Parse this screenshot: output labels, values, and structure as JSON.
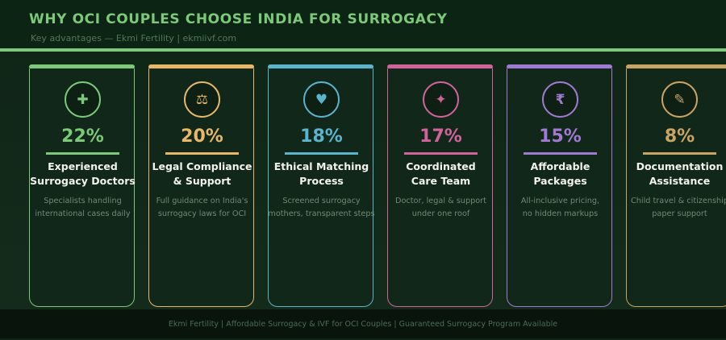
{
  "header": {
    "title": "WHY OCI COUPLES CHOOSE INDIA FOR SURROGACY",
    "subtitle": "Key advantages — Ekmi Fertility  |  ekmiivf.com",
    "accent": "#7dc87a"
  },
  "cards": [
    {
      "percent": "22%",
      "title_lines": [
        "Experienced",
        "Surrogacy Doctors"
      ],
      "desc_lines": [
        "Specialists handling",
        "international cases daily"
      ],
      "icon": "plus-icon",
      "glyph": "✚",
      "color": "#7dc87a"
    },
    {
      "percent": "20%",
      "title_lines": [
        "Legal Compliance",
        "& Support"
      ],
      "desc_lines": [
        "Full guidance on India's",
        "surrogacy laws for OCI"
      ],
      "icon": "scales-icon",
      "glyph": "⚖",
      "color": "#e8b86a"
    },
    {
      "percent": "18%",
      "title_lines": [
        "Ethical Matching",
        "Process"
      ],
      "desc_lines": [
        "Screened surrogacy",
        "mothers, transparent steps"
      ],
      "icon": "heart-icon",
      "glyph": "♥",
      "color": "#5ab4cc"
    },
    {
      "percent": "17%",
      "title_lines": [
        "Coordinated",
        "Care Team"
      ],
      "desc_lines": [
        "Doctor, legal & support",
        "under one roof"
      ],
      "icon": "sparkle-icon",
      "glyph": "✦",
      "color": "#d0639a"
    },
    {
      "percent": "15%",
      "title_lines": [
        "Affordable",
        "Packages"
      ],
      "desc_lines": [
        "All-inclusive pricing,",
        "no hidden markups"
      ],
      "icon": "rupee-icon",
      "glyph": "₹",
      "color": "#a07ad0"
    },
    {
      "percent": "8%",
      "title_lines": [
        "Documentation",
        "Assistance"
      ],
      "desc_lines": [
        "Child travel & citizenship",
        "paper support"
      ],
      "icon": "pencil-icon",
      "glyph": "✎",
      "color": "#c9a464"
    }
  ],
  "footer": {
    "text": "Ekmi Fertility  |  Affordable Surrogacy & IVF for OCI Couples  |  Guaranteed Surrogacy Program Available"
  }
}
